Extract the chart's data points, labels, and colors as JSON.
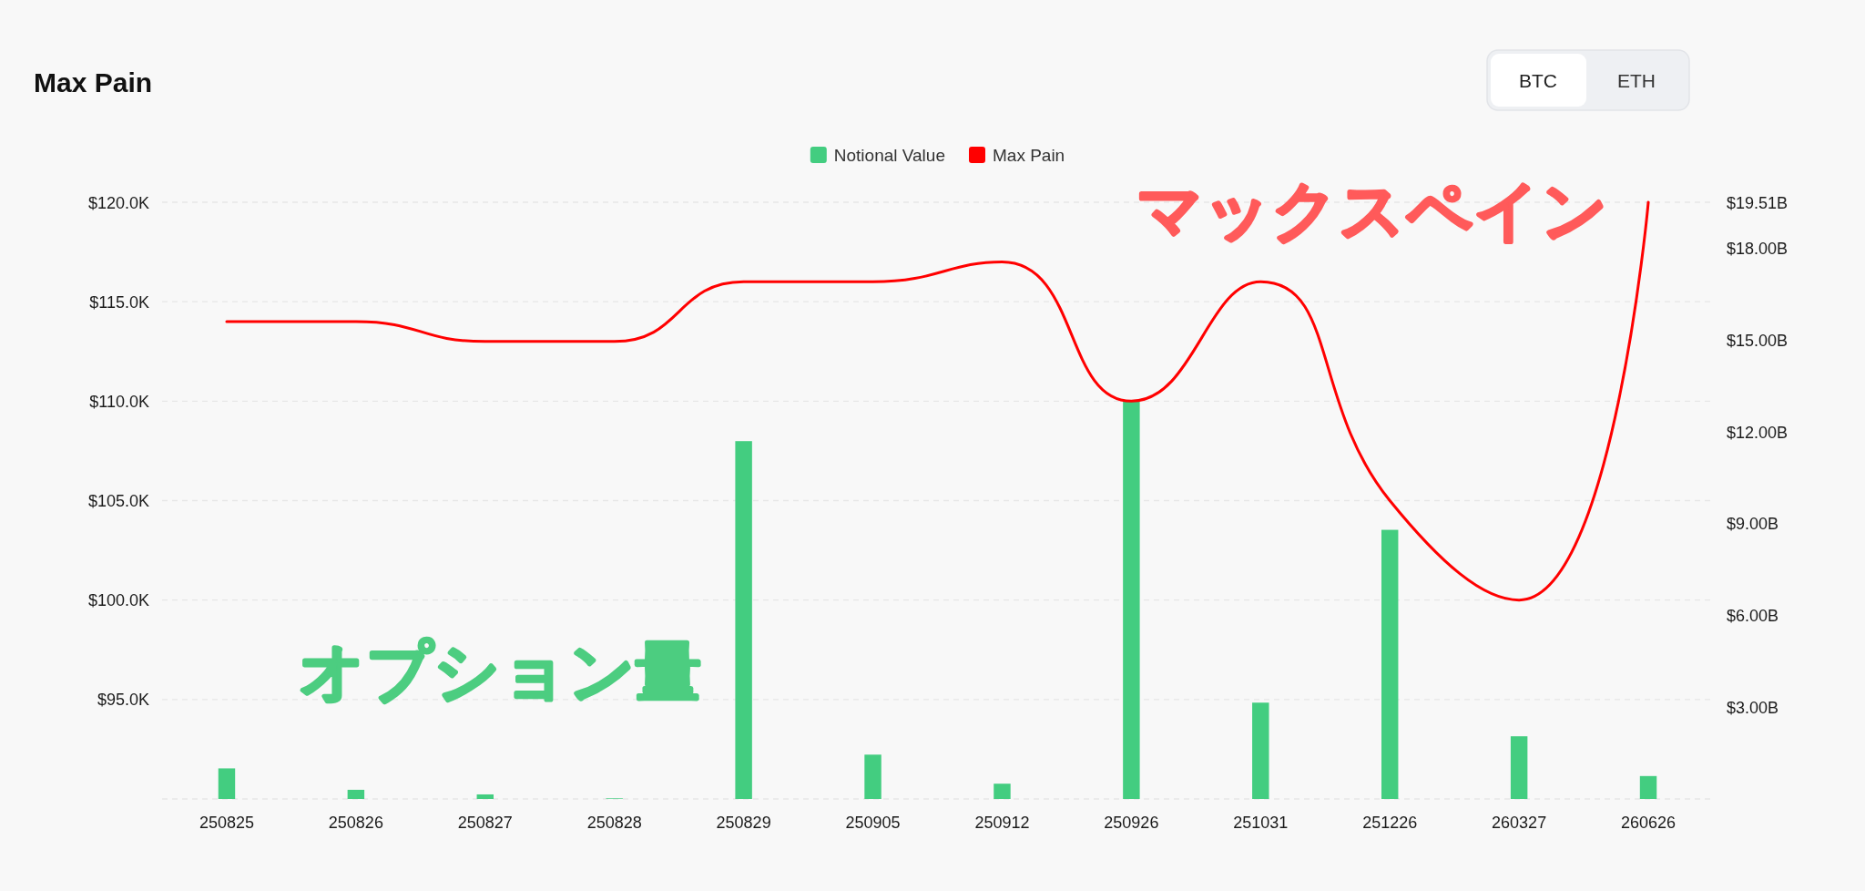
{
  "chart_data": {
    "type": "bar",
    "title": "Max Pain",
    "categories": [
      "250825",
      "250826",
      "250827",
      "250828",
      "250829",
      "250905",
      "250912",
      "250926",
      "251031",
      "251226",
      "260327",
      "260626"
    ],
    "series": [
      {
        "name": "Notional Value",
        "axis": "y2",
        "color": "#43cd80",
        "values": [
          1.0,
          0.3,
          0.15,
          0.02,
          11.7,
          1.45,
          0.5,
          13.0,
          3.15,
          8.8,
          2.05,
          0.75
        ]
      },
      {
        "name": "Max Pain",
        "type": "line",
        "color": "#ff0000",
        "values": [
          114,
          114,
          113,
          113,
          116,
          116,
          117,
          110,
          116,
          105,
          100,
          120
        ]
      }
    ],
    "ylim": [
      90,
      120
    ],
    "yticks": [
      {
        "value": 90,
        "label": null
      },
      {
        "value": 95,
        "label": "$95.0K"
      },
      {
        "value": 100,
        "label": "$100.0K"
      },
      {
        "value": 105,
        "label": "$105.0K"
      },
      {
        "value": 110,
        "label": "$110.0K"
      },
      {
        "value": 115,
        "label": "$115.0K"
      },
      {
        "value": 120,
        "label": "$120.0K"
      }
    ],
    "y2lim": [
      0,
      19.51
    ],
    "y2ticks": [
      {
        "value": 3,
        "label": "$3.00B"
      },
      {
        "value": 6,
        "label": "$6.00B"
      },
      {
        "value": 9,
        "label": "$9.00B"
      },
      {
        "value": 12,
        "label": "$12.00B"
      },
      {
        "value": 15,
        "label": "$15.00B"
      },
      {
        "value": 18,
        "label": "$18.00B"
      },
      {
        "value": 19.51,
        "label": "$19.51B"
      }
    ],
    "grid": "y",
    "legend": "top",
    "annotations": [
      "BTC",
      "ETH",
      "マックスペイン",
      "オプション量"
    ]
  }
}
